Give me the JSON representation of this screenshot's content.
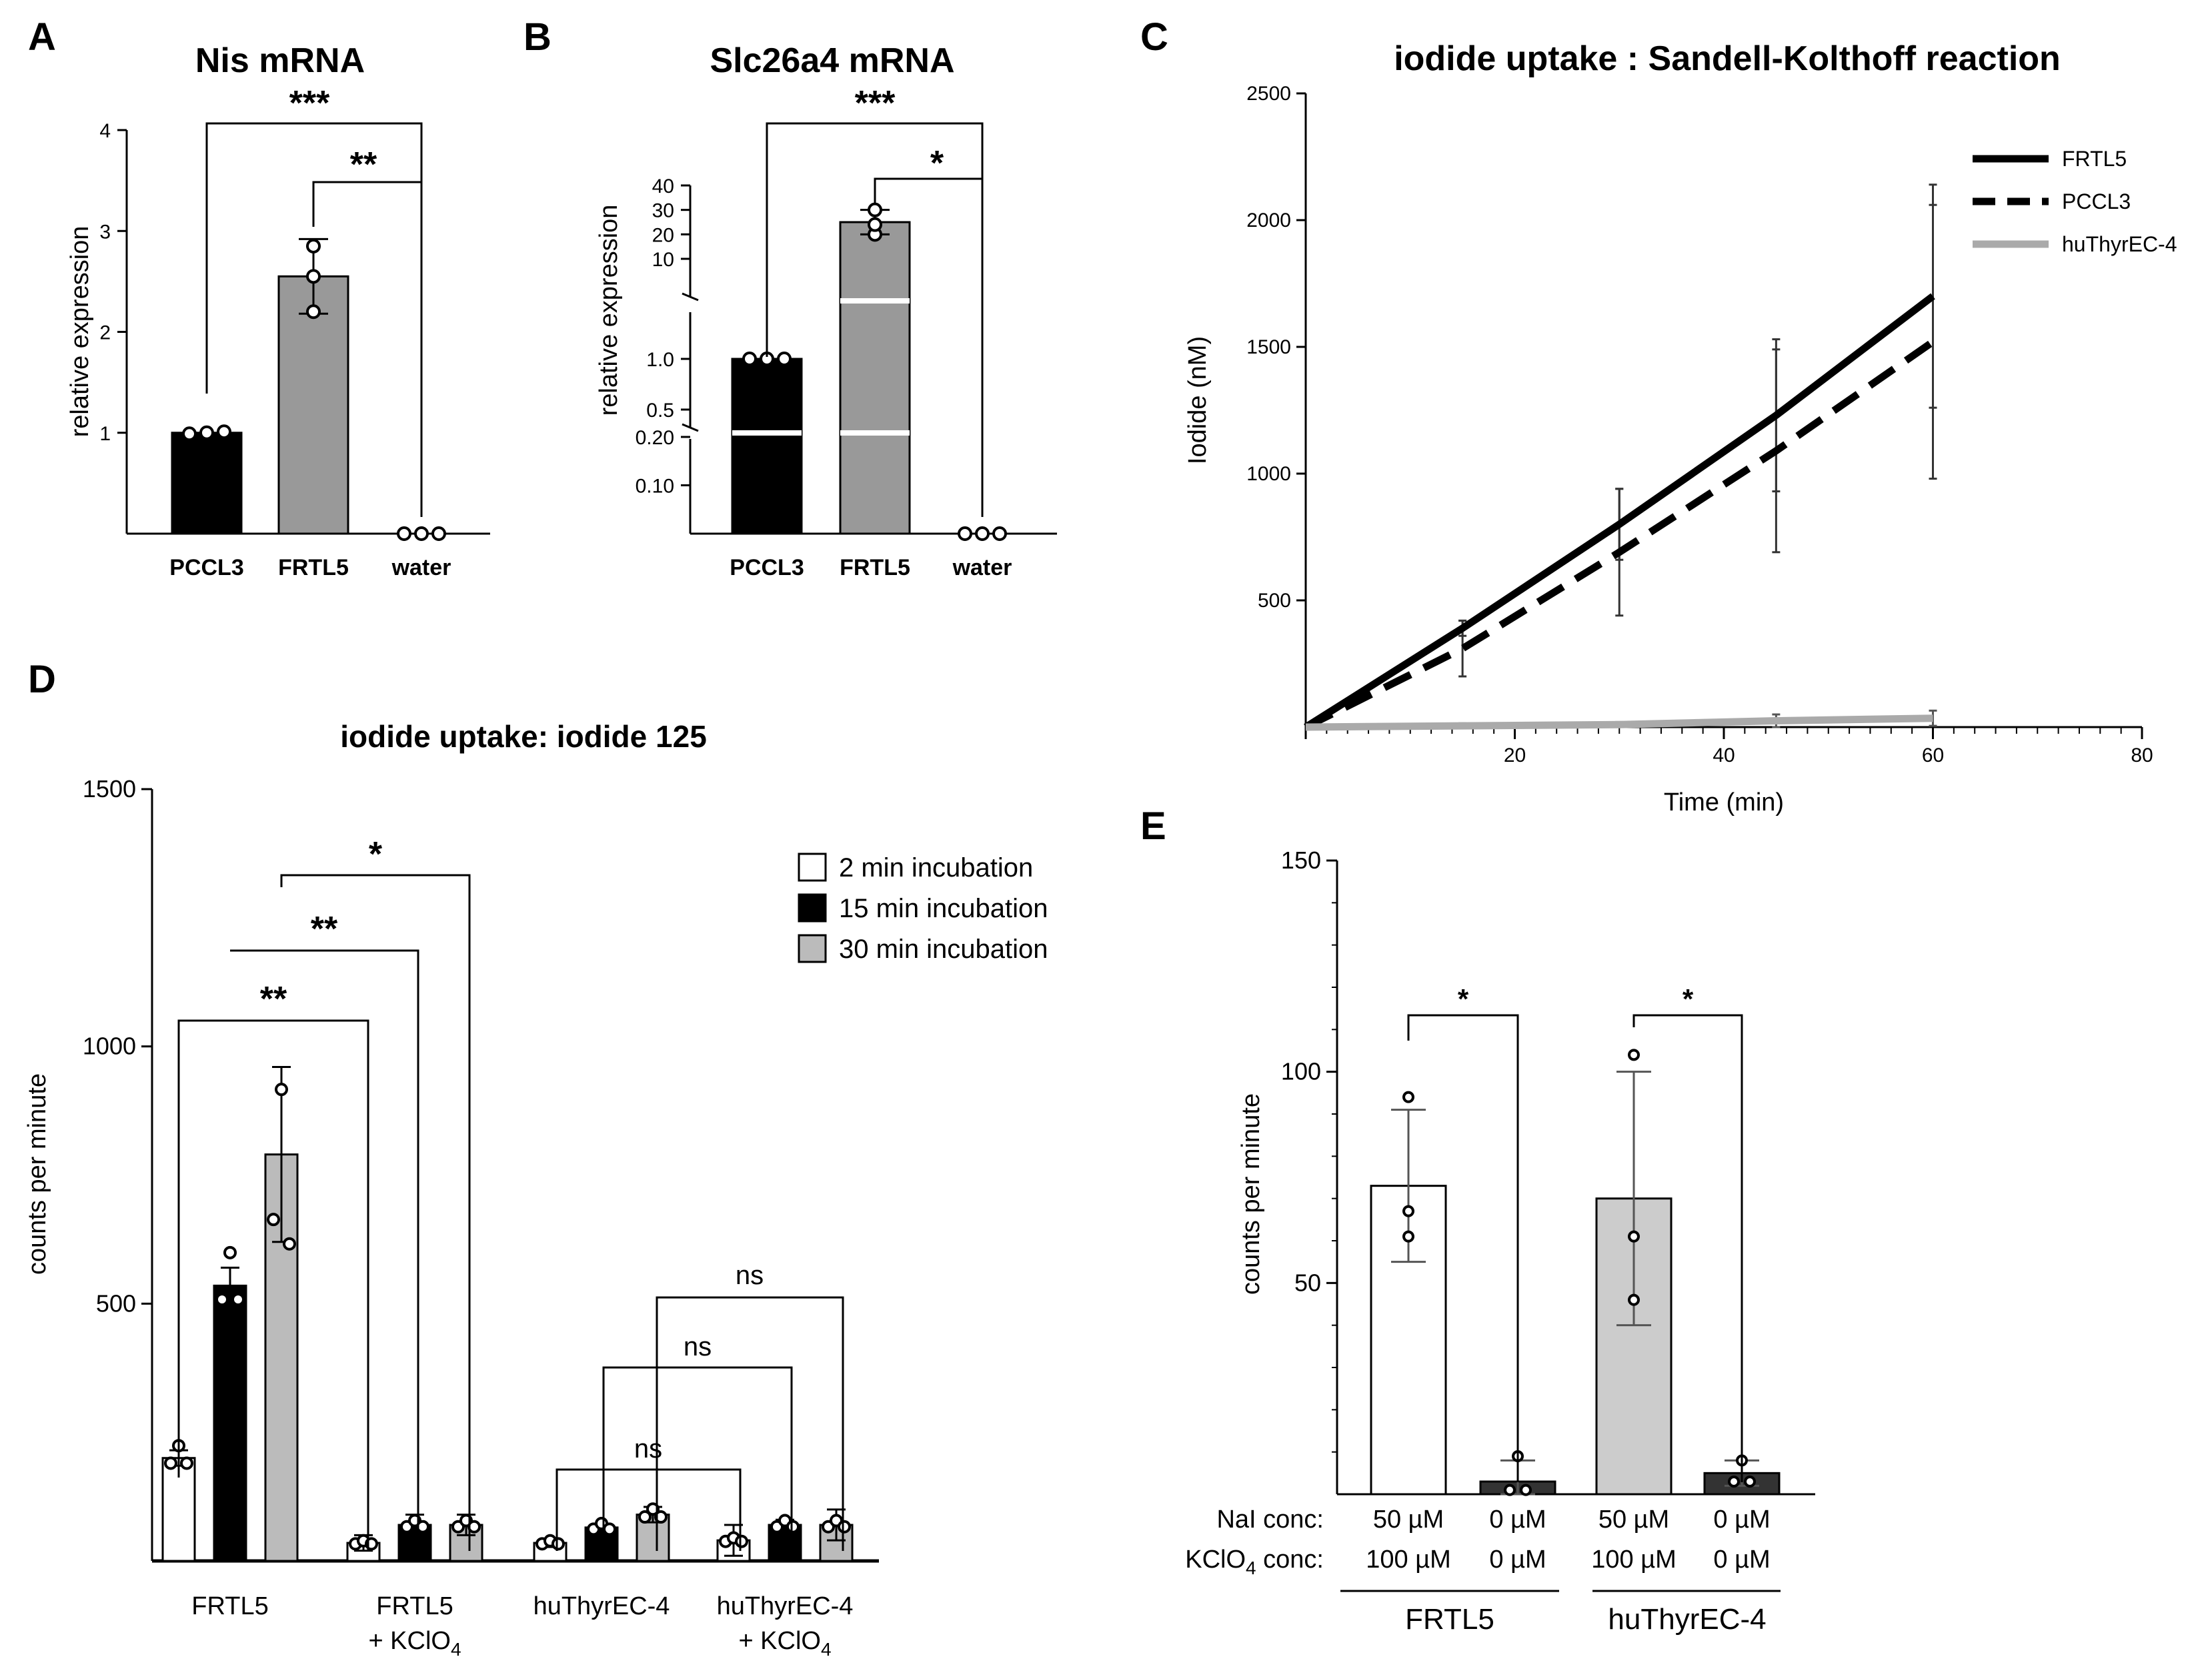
{
  "panel_labels": [
    "A",
    "B",
    "C",
    "D",
    "E"
  ],
  "chart_data": [
    {
      "id": "A",
      "type": "bar",
      "title": "Nis mRNA",
      "ylabel": "relative expression",
      "xlabel": "",
      "categories": [
        "PCCL3",
        "FRTL5",
        "water"
      ],
      "values": [
        1.0,
        2.55,
        0.0
      ],
      "error": [
        0.02,
        0.37,
        0.0
      ],
      "points": [
        [
          0.99,
          1.0,
          1.01
        ],
        [
          2.2,
          2.55,
          2.85
        ],
        [
          0.0,
          0.0,
          0.0
        ]
      ],
      "bar_colors": [
        "#000000",
        "#999999",
        "#ffffff"
      ],
      "ylim": [
        0,
        4
      ],
      "yticks": [
        "1",
        "2",
        "3",
        "4"
      ],
      "significance": [
        {
          "from": "PCCL3",
          "to": "water",
          "label": "***"
        },
        {
          "from": "FRTL5",
          "to": "water",
          "label": "**"
        }
      ]
    },
    {
      "id": "B",
      "type": "bar",
      "title": "Slc26a4 mRNA",
      "ylabel": "relative expression",
      "xlabel": "",
      "categories": [
        "PCCL3",
        "FRTL5",
        "water"
      ],
      "values": [
        1.0,
        25.0,
        0.0
      ],
      "error": [
        0.02,
        5.0,
        0.0
      ],
      "points": [
        [
          1.0,
          1.0,
          1.0
        ],
        [
          20.0,
          24.0,
          30.0
        ],
        [
          0.0,
          0.0,
          0.0
        ]
      ],
      "bar_colors": [
        "#000000",
        "#999999",
        "#ffffff"
      ],
      "yaxis_segments": "broken axis: 0 to 0.20, 0.5 to 1.0, 10 to 40",
      "yticks": [
        "0.10",
        "0.20",
        "0.5",
        "1.0",
        "10",
        "20",
        "30",
        "40"
      ],
      "significance": [
        {
          "from": "PCCL3",
          "to": "water",
          "label": "***"
        },
        {
          "from": "FRTL5",
          "to": "water",
          "label": "*"
        }
      ]
    },
    {
      "id": "C",
      "type": "line",
      "title": "iodide uptake : Sandell-Kolthoff reaction",
      "xlabel": "Time (min)",
      "ylabel": "Iodide (nM)",
      "xlim": [
        0,
        80
      ],
      "ylim": [
        0,
        2500
      ],
      "xticks": [
        "20",
        "40",
        "60",
        "80"
      ],
      "yticks": [
        "500",
        "1000",
        "1500",
        "2000",
        "2500"
      ],
      "legend_position": "top-right",
      "series": [
        {
          "name": "FRTL5",
          "style": "solid",
          "color": "#000000",
          "x": [
            0,
            15,
            30,
            45,
            60
          ],
          "y": [
            0,
            390,
            800,
            1230,
            1700
          ],
          "err": [
            0,
            30,
            140,
            300,
            440
          ]
        },
        {
          "name": "PCCL3",
          "style": "dashed",
          "color": "#000000",
          "x": [
            0,
            15,
            30,
            45,
            60
          ],
          "y": [
            0,
            310,
            690,
            1090,
            1520
          ],
          "err": [
            0,
            110,
            250,
            400,
            540
          ]
        },
        {
          "name": "huThyrEC-4",
          "style": "solid",
          "color": "#aaaaaa",
          "x": [
            0,
            15,
            30,
            45,
            60
          ],
          "y": [
            0,
            5,
            10,
            25,
            35
          ],
          "err": [
            0,
            10,
            10,
            25,
            30
          ]
        }
      ]
    },
    {
      "id": "D",
      "type": "bar",
      "title": "iodide uptake: iodide 125",
      "xlabel": "",
      "ylabel": "counts per minute",
      "ylim": [
        0,
        1500
      ],
      "yticks": [
        "500",
        "1000",
        "1500"
      ],
      "groups": [
        {
          "label": "FRTL5",
          "sub": ""
        },
        {
          "label": "FRTL5",
          "sub": "+ KClO",
          "sub_index": "4"
        },
        {
          "label": "huThyrEC-4",
          "sub": ""
        },
        {
          "label": "huThyrEC-4",
          "sub": "+ KClO",
          "sub_index": "4"
        }
      ],
      "legend_position": "top-right",
      "series": [
        {
          "name": "2 min incubation",
          "color": "#ffffff",
          "values": [
            200,
            35,
            35,
            40
          ],
          "error": [
            15,
            15,
            8,
            30
          ]
        },
        {
          "name": "15 min incubation",
          "color": "#000000",
          "values": [
            535,
            70,
            65,
            70
          ],
          "error": [
            35,
            20,
            5,
            10
          ]
        },
        {
          "name": "30 min incubation",
          "color": "#bbbbbb",
          "values": [
            790,
            70,
            90,
            70
          ],
          "error": [
            170,
            20,
            15,
            30
          ]
        }
      ],
      "significance": [
        {
          "label": "**"
        },
        {
          "label": "**"
        },
        {
          "label": "*"
        },
        {
          "label": "ns"
        },
        {
          "label": "ns"
        },
        {
          "label": "ns"
        }
      ]
    },
    {
      "id": "E",
      "type": "bar",
      "title": "",
      "xlabel": "",
      "ylabel": "counts per minute",
      "ylim": [
        0,
        150
      ],
      "yticks": [
        "50",
        "100",
        "150"
      ],
      "values": [
        73,
        3,
        70,
        5
      ],
      "error": [
        18,
        5,
        30,
        3
      ],
      "points": [
        [
          94,
          67,
          61
        ],
        [
          9,
          1,
          1
        ],
        [
          104,
          61,
          46
        ],
        [
          8,
          3,
          3
        ]
      ],
      "bar_colors": [
        "#ffffff",
        "#333333",
        "#cccccc",
        "#333333"
      ],
      "row_labels": [
        "NaI conc:",
        "KClO",
        "4",
        " conc:"
      ],
      "nai": [
        "50 µM",
        "0 µM",
        "50 µM",
        "0 µM"
      ],
      "kclo4": [
        "100 µM",
        "0 µM",
        "100 µM",
        "0 µM"
      ],
      "group_labels": [
        "FRTL5",
        "huThyrEC-4"
      ],
      "significance": [
        {
          "label": "*"
        },
        {
          "label": "*"
        }
      ]
    }
  ]
}
